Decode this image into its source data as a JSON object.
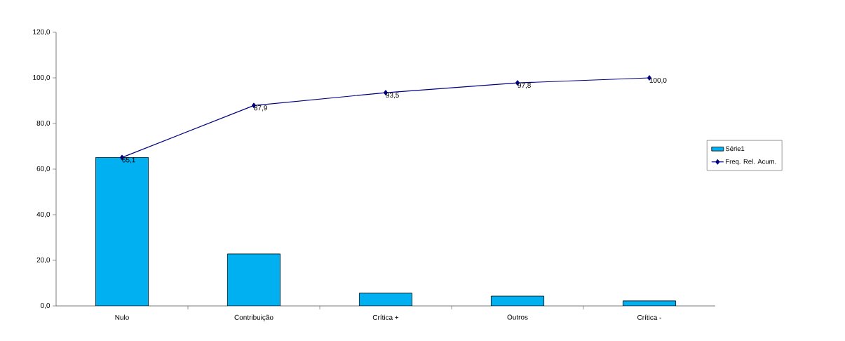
{
  "chart_data": {
    "type": "bar",
    "categories": [
      "Nulo",
      "Contribuição",
      "Crítica +",
      "Outros",
      "Crítica -"
    ],
    "series": [
      {
        "name": "Série1",
        "color": "#00b0f0",
        "values": [
          65.1,
          22.8,
          5.6,
          4.3,
          2.2
        ]
      },
      {
        "name": "Freq. Rel. Acum.",
        "type": "line",
        "color": "#000080",
        "marker": "diamond",
        "values": [
          65.1,
          87.9,
          93.5,
          97.8,
          100.0
        ],
        "value_labels": [
          "65,1",
          "87,9",
          "93,5",
          "97,8",
          "100,0"
        ]
      }
    ],
    "ylim": [
      0,
      120
    ],
    "yticks": [
      {
        "value": 0,
        "label": "0,0"
      },
      {
        "value": 20,
        "label": "20,0"
      },
      {
        "value": 40,
        "label": "40,0"
      },
      {
        "value": 60,
        "label": "60,0"
      },
      {
        "value": 80,
        "label": "80,0"
      },
      {
        "value": 100,
        "label": "100,0"
      },
      {
        "value": 120,
        "label": "120,0"
      }
    ],
    "legend": "right",
    "grid": false
  }
}
